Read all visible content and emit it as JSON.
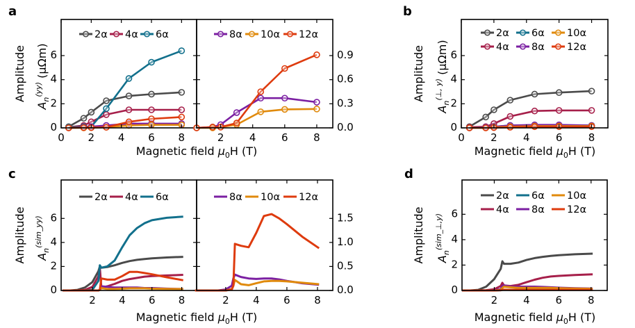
{
  "colors": {
    "2α": "#4a4a4a",
    "4α": "#a61f4a",
    "6α": "#12708c",
    "8α": "#7b1fa2",
    "10α": "#e08a0c",
    "12α": "#de3b0e"
  },
  "panel_letters": {
    "a": "a",
    "b": "b",
    "c": "c",
    "d": "d"
  },
  "xlabel": {
    "text": "Magnetic field ",
    "mu": "μ",
    "sub": "0",
    "rest": "H (T)"
  },
  "chart_data": [
    {
      "panel": "a-left",
      "type": "line",
      "markers": true,
      "ylabel": {
        "line1": "Amplitude",
        "sym": "A",
        "sub": "n",
        "sup": "(yy)",
        "unit": " (μΩm)"
      },
      "xlim": [
        0,
        9
      ],
      "ylim": [
        0,
        9
      ],
      "xticks": [
        "0",
        "2",
        "4",
        "6",
        "8"
      ],
      "yticks": [
        "0",
        "2",
        "4",
        "6"
      ],
      "legend": [
        "2α",
        "4α",
        "6α"
      ],
      "x": [
        0.5,
        1.5,
        2,
        3,
        4.5,
        6,
        8
      ],
      "series": [
        {
          "name": "2α",
          "values": [
            0.1,
            0.8,
            1.3,
            2.25,
            2.65,
            2.8,
            2.95
          ]
        },
        {
          "name": "4α",
          "values": [
            0.05,
            0.2,
            0.5,
            1.1,
            1.5,
            1.5,
            1.5
          ]
        },
        {
          "name": "6α",
          "values": [
            0.05,
            0.1,
            0.1,
            1.6,
            4.1,
            5.45,
            6.4
          ]
        },
        {
          "name": "8α",
          "values": [
            0,
            0.05,
            0.1,
            0.2,
            0.35,
            0.35,
            0.35
          ]
        },
        {
          "name": "10α",
          "values": [
            0,
            0,
            0.02,
            0.05,
            0.2,
            0.25,
            0.25
          ]
        },
        {
          "name": "12α",
          "values": [
            0,
            0.02,
            0.02,
            0.05,
            0.5,
            0.75,
            0.9
          ]
        }
      ]
    },
    {
      "panel": "a-right",
      "type": "line",
      "markers": true,
      "xlim": [
        0.5,
        9
      ],
      "ylim": [
        0,
        1.35
      ],
      "xticks": [
        "2",
        "4",
        "6",
        "8"
      ],
      "yticks": [
        "0.0",
        "0.3",
        "0.6",
        "0.9"
      ],
      "legend": [
        "8α",
        "10α",
        "12α"
      ],
      "x": [
        0.5,
        1.5,
        2,
        3,
        4.5,
        6,
        8
      ],
      "series": [
        {
          "name": "8α",
          "values": [
            0,
            0.01,
            0.04,
            0.19,
            0.37,
            0.37,
            0.32
          ]
        },
        {
          "name": "10α",
          "values": [
            0,
            0,
            0.01,
            0.04,
            0.2,
            0.23,
            0.235
          ]
        },
        {
          "name": "12α",
          "values": [
            0,
            0.01,
            0.01,
            0.06,
            0.45,
            0.74,
            0.91
          ]
        }
      ]
    },
    {
      "panel": "b",
      "type": "line",
      "markers": true,
      "ylabel": {
        "line1": "Amplitude",
        "sym": "A",
        "sub": "n",
        "sup": "(⊥, y)",
        "unit": " (μΩm)"
      },
      "xlim": [
        0,
        9
      ],
      "ylim": [
        0,
        9
      ],
      "xticks": [
        "0",
        "2",
        "4",
        "6",
        "8"
      ],
      "yticks": [
        "0",
        "2",
        "4",
        "6"
      ],
      "legend": [
        "2α",
        "6α",
        "10α",
        "4α",
        "8α",
        "12α"
      ],
      "x": [
        0.5,
        1.5,
        2,
        3,
        4.5,
        6,
        8
      ],
      "series": [
        {
          "name": "2α",
          "values": [
            0.1,
            0.9,
            1.5,
            2.3,
            2.8,
            2.93,
            3.05
          ]
        },
        {
          "name": "4α",
          "values": [
            0.05,
            0.1,
            0.35,
            0.95,
            1.4,
            1.45,
            1.45
          ]
        },
        {
          "name": "6α",
          "values": [
            0,
            0.05,
            0.1,
            0.2,
            0.2,
            0.2,
            0.2
          ]
        },
        {
          "name": "8α",
          "values": [
            0,
            0.05,
            0.1,
            0.2,
            0.25,
            0.25,
            0.2
          ]
        },
        {
          "name": "10α",
          "values": [
            0,
            0,
            0.05,
            0.1,
            0.15,
            0.15,
            0.15
          ]
        },
        {
          "name": "12α",
          "values": [
            0,
            0,
            0.02,
            0.05,
            0.1,
            0.1,
            0.1
          ]
        }
      ]
    },
    {
      "panel": "c-left",
      "type": "line",
      "markers": false,
      "ylabel": {
        "line1": "Amplitude",
        "sym": "A",
        "sub": "n",
        "sup": "(sim_yy)",
        "unit": ""
      },
      "xlim": [
        -0.1,
        9
      ],
      "ylim": [
        0,
        9.2
      ],
      "xticks": [
        "2",
        "4",
        "6",
        "8"
      ],
      "yticks": [
        "0",
        "2",
        "4",
        "6"
      ],
      "legend": [
        "2α",
        "4α",
        "6α"
      ],
      "x": [
        0,
        0.5,
        1,
        1.5,
        2,
        2.4,
        2.5,
        2.6,
        3,
        3.5,
        4,
        4.5,
        5,
        5.5,
        6,
        7,
        8.1
      ],
      "series": [
        {
          "name": "2α",
          "values": [
            0,
            0,
            0.05,
            0.25,
            0.7,
            1.6,
            2.0,
            1.9,
            1.95,
            2.1,
            2.3,
            2.45,
            2.55,
            2.62,
            2.68,
            2.75,
            2.8
          ]
        },
        {
          "name": "4α",
          "values": [
            0,
            0,
            0,
            0.05,
            0.3,
            1.2,
            1.9,
            0.25,
            0.35,
            0.55,
            0.8,
            0.95,
            1.05,
            1.15,
            1.2,
            1.25,
            1.3
          ]
        },
        {
          "name": "6α",
          "values": [
            0,
            0,
            0,
            0,
            0.05,
            0.8,
            2.1,
            1.9,
            2.0,
            2.5,
            3.6,
            4.6,
            5.2,
            5.6,
            5.85,
            6.05,
            6.15
          ]
        },
        {
          "name": "8α",
          "values": [
            0,
            0,
            0,
            0,
            0,
            0,
            0.05,
            0.35,
            0.3,
            0.25,
            0.25,
            0.25,
            0.25,
            0.2,
            0.2,
            0.15,
            0.12
          ]
        },
        {
          "name": "10α",
          "values": [
            0,
            0,
            0,
            0,
            0,
            0,
            0.05,
            0.2,
            0.12,
            0.12,
            0.15,
            0.18,
            0.18,
            0.18,
            0.15,
            0.13,
            0.12
          ]
        },
        {
          "name": "12α",
          "values": [
            0,
            0,
            0,
            0,
            0,
            0,
            0.05,
            1.0,
            0.9,
            0.9,
            1.2,
            1.55,
            1.55,
            1.45,
            1.35,
            1.1,
            0.85
          ]
        }
      ]
    },
    {
      "panel": "c-right",
      "type": "line",
      "markers": false,
      "xlim": [
        0.1,
        9
      ],
      "ylim": [
        0,
        2.3
      ],
      "xticks": [
        "2",
        "4",
        "6",
        "8"
      ],
      "yticks": [
        "0.0",
        "0.5",
        "1.0",
        "1.5"
      ],
      "legend": [
        "8α",
        "10α",
        "12α"
      ],
      "x": [
        0,
        0.5,
        1,
        1.5,
        2,
        2.4,
        2.5,
        2.6,
        3,
        3.5,
        4,
        4.5,
        5,
        5.5,
        6,
        7,
        8.1
      ],
      "series": [
        {
          "name": "8α",
          "values": [
            0,
            0,
            0,
            0,
            0.02,
            0.1,
            0.25,
            0.33,
            0.28,
            0.25,
            0.24,
            0.25,
            0.25,
            0.23,
            0.2,
            0.15,
            0.12
          ]
        },
        {
          "name": "10α",
          "values": [
            0,
            0,
            0,
            0,
            0,
            0.03,
            0.1,
            0.22,
            0.13,
            0.11,
            0.15,
            0.19,
            0.2,
            0.2,
            0.19,
            0.16,
            0.13
          ]
        },
        {
          "name": "12α",
          "values": [
            0,
            0,
            0,
            0,
            0,
            0.02,
            0.1,
            0.97,
            0.93,
            0.9,
            1.2,
            1.55,
            1.59,
            1.5,
            1.38,
            1.12,
            0.88
          ]
        }
      ]
    },
    {
      "panel": "d",
      "type": "line",
      "markers": false,
      "ylabel": {
        "line1": "Amplitude",
        "sym": "A",
        "sub": "n",
        "sup": "(sim_⊥,y)",
        "unit": ""
      },
      "xlim": [
        0,
        9
      ],
      "ylim": [
        0,
        8.7
      ],
      "xticks": [
        "2",
        "4",
        "6",
        "8"
      ],
      "yticks": [
        "0",
        "2",
        "4",
        "6"
      ],
      "legend": [
        "2α",
        "6α",
        "10α",
        "4α",
        "8α",
        "12α"
      ],
      "x": [
        0,
        0.5,
        1,
        1.5,
        2,
        2.4,
        2.5,
        2.6,
        3,
        3.5,
        4,
        4.5,
        5,
        5.5,
        6,
        7,
        8.1
      ],
      "series": [
        {
          "name": "2α",
          "values": [
            0,
            0,
            0.05,
            0.3,
            0.9,
            1.7,
            2.3,
            2.1,
            2.1,
            2.2,
            2.4,
            2.55,
            2.65,
            2.72,
            2.78,
            2.85,
            2.9
          ]
        },
        {
          "name": "4α",
          "values": [
            0,
            0,
            0,
            0.02,
            0.1,
            0.35,
            0.6,
            0.4,
            0.35,
            0.45,
            0.65,
            0.85,
            1.0,
            1.1,
            1.15,
            1.22,
            1.27
          ]
        },
        {
          "name": "6α",
          "values": [
            0,
            0,
            0,
            0,
            0,
            0.02,
            0.05,
            0.05,
            0.05,
            0.05,
            0.05,
            0.05,
            0.05,
            0.05,
            0.05,
            0.05,
            0.05
          ]
        },
        {
          "name": "8α",
          "values": [
            0,
            0,
            0,
            0,
            0.02,
            0.1,
            0.35,
            0.4,
            0.3,
            0.3,
            0.3,
            0.3,
            0.28,
            0.25,
            0.22,
            0.18,
            0.15
          ]
        },
        {
          "name": "10α",
          "values": [
            0,
            0,
            0,
            0,
            0,
            0.05,
            0.2,
            0.3,
            0.25,
            0.2,
            0.2,
            0.2,
            0.2,
            0.2,
            0.18,
            0.15,
            0.13
          ]
        },
        {
          "name": "12α",
          "values": [
            0,
            0,
            0,
            0,
            0,
            0.02,
            0.05,
            0.06,
            0.05,
            0.05,
            0.05,
            0.05,
            0.05,
            0.05,
            0.05,
            0.05,
            0.05
          ]
        }
      ]
    }
  ]
}
